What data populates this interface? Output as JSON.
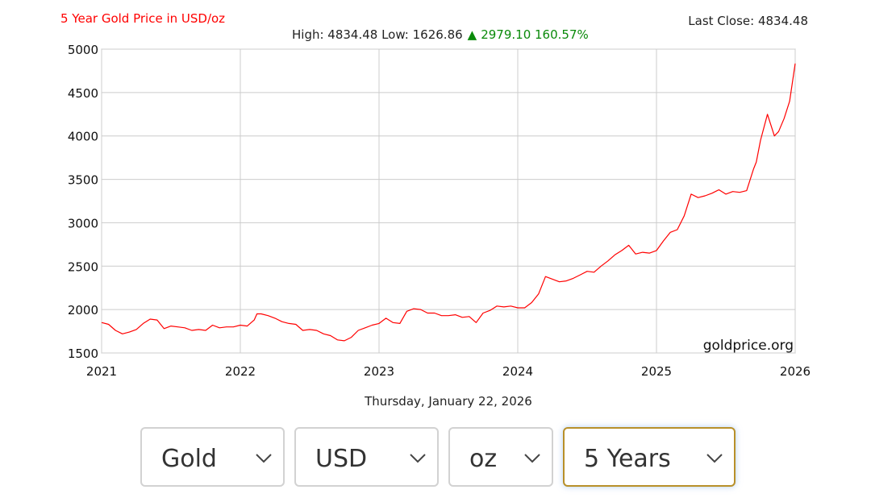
{
  "header": {
    "title": "5 Year Gold Price in USD/oz",
    "last_close": "Last Close: 4834.48",
    "high_low": "High: 4834.48 Low: 1626.86",
    "change_arrow": "▲",
    "change": "2979.10 160.57%"
  },
  "date_label": "Thursday, January 22, 2026",
  "watermark": "goldprice.org",
  "colors": {
    "line": "#ff0000",
    "title": "#ff0000",
    "change": "#0a8a0a",
    "grid": "#cccccc",
    "active_border": "#b8902a"
  },
  "selectors": [
    {
      "label": "Gold",
      "icon": "chevron-down-icon",
      "active": false
    },
    {
      "label": "USD",
      "icon": "chevron-down-icon",
      "active": false
    },
    {
      "label": "oz",
      "icon": "chevron-down-icon",
      "active": false
    },
    {
      "label": "5 Years",
      "icon": "chevron-down-icon",
      "active": true
    }
  ],
  "chart_data": {
    "type": "line",
    "title": "5 Year Gold Price in USD/oz",
    "xlabel": "",
    "ylabel": "",
    "xlim": [
      2021,
      2026
    ],
    "ylim": [
      1500,
      5000
    ],
    "xticks": [
      "2021",
      "2022",
      "2023",
      "2024",
      "2025",
      "2026"
    ],
    "yticks": [
      "1500",
      "2000",
      "2500",
      "3000",
      "3500",
      "4000",
      "4500",
      "5000"
    ],
    "grid": true,
    "legend": "none",
    "series": [
      {
        "x": [
          2021.0,
          2021.05,
          2021.1,
          2021.15,
          2021.2,
          2021.25,
          2021.3,
          2021.35,
          2021.4,
          2021.45,
          2021.5,
          2021.55,
          2021.6,
          2021.65,
          2021.7,
          2021.75,
          2021.8,
          2021.85,
          2021.9,
          2021.95,
          2022.0,
          2022.05,
          2022.1,
          2022.12,
          2022.15,
          2022.2,
          2022.25,
          2022.3,
          2022.35,
          2022.4,
          2022.45,
          2022.5,
          2022.55,
          2022.6,
          2022.65,
          2022.7,
          2022.75,
          2022.8,
          2022.85,
          2022.9,
          2022.95,
          2023.0,
          2023.05,
          2023.1,
          2023.15,
          2023.2,
          2023.25,
          2023.3,
          2023.35,
          2023.4,
          2023.45,
          2023.5,
          2023.55,
          2023.6,
          2023.65,
          2023.7,
          2023.75,
          2023.8,
          2023.85,
          2023.9,
          2023.95,
          2024.0,
          2024.05,
          2024.1,
          2024.15,
          2024.2,
          2024.25,
          2024.3,
          2024.35,
          2024.4,
          2024.45,
          2024.5,
          2024.55,
          2024.6,
          2024.65,
          2024.7,
          2024.75,
          2024.8,
          2024.85,
          2024.9,
          2024.95,
          2025.0,
          2025.05,
          2025.1,
          2025.15,
          2025.2,
          2025.25,
          2025.3,
          2025.35,
          2025.4,
          2025.45,
          2025.5,
          2025.55,
          2025.6,
          2025.65,
          2025.7,
          2025.72,
          2025.75,
          2025.8,
          2025.85,
          2025.88,
          2025.92,
          2025.96,
          2026.0
        ],
        "y": [
          1850,
          1830,
          1760,
          1720,
          1740,
          1770,
          1840,
          1890,
          1880,
          1780,
          1810,
          1800,
          1790,
          1760,
          1770,
          1760,
          1820,
          1790,
          1800,
          1800,
          1820,
          1810,
          1880,
          1950,
          1950,
          1930,
          1900,
          1860,
          1840,
          1830,
          1760,
          1770,
          1760,
          1720,
          1700,
          1650,
          1640,
          1680,
          1760,
          1790,
          1820,
          1840,
          1900,
          1850,
          1840,
          1980,
          2010,
          2000,
          1960,
          1960,
          1930,
          1930,
          1940,
          1910,
          1920,
          1850,
          1960,
          1990,
          2040,
          2030,
          2040,
          2020,
          2020,
          2080,
          2180,
          2380,
          2350,
          2320,
          2330,
          2360,
          2400,
          2440,
          2430,
          2500,
          2560,
          2630,
          2680,
          2740,
          2640,
          2660,
          2650,
          2680,
          2790,
          2890,
          2920,
          3080,
          3330,
          3290,
          3310,
          3340,
          3380,
          3330,
          3360,
          3350,
          3370,
          3620,
          3700,
          3950,
          4250,
          4000,
          4050,
          4200,
          4400,
          4834.48
        ]
      }
    ]
  }
}
